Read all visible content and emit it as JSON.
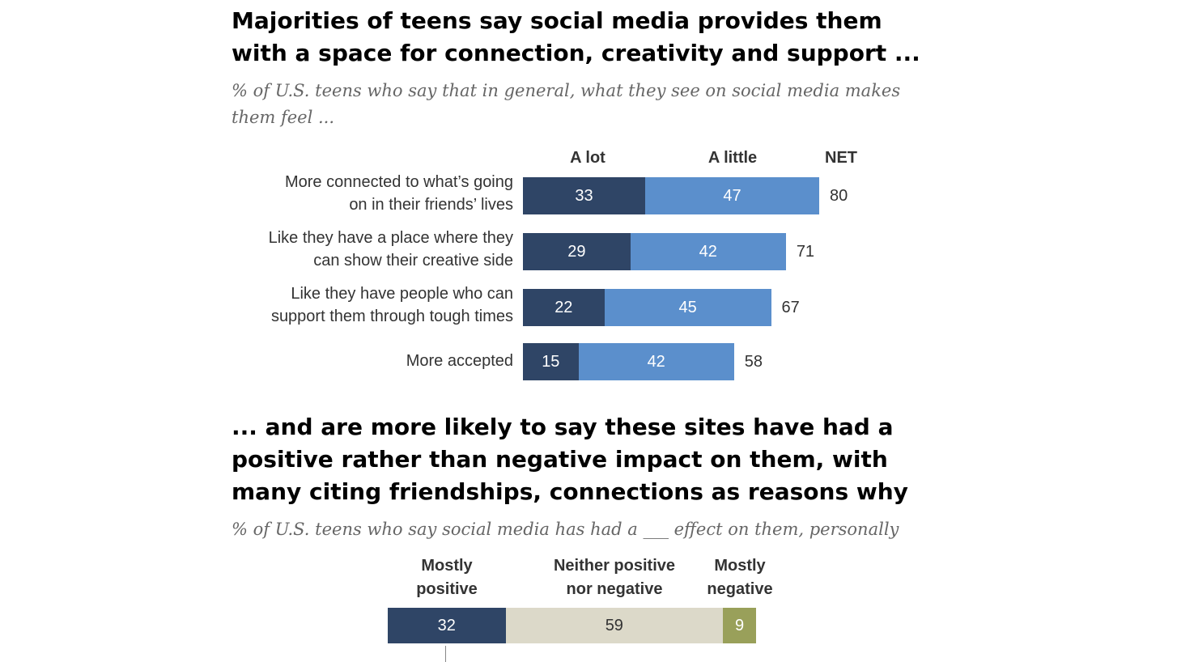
{
  "titles": {
    "t1_line1": "Majorities of teens say social media provides them",
    "t1_line2": "with a space for connection, creativity and support ...",
    "s1": "% of U.S. teens who say that in general, what they see on social media makes them feel ...",
    "t2_line1": "... and are more likely to say these sites have had a",
    "t2_line2": "positive rather than negative impact on them, with",
    "t2_line3": "many citing friendships, connections as reasons why",
    "s2": "% of U.S. teens who say social media has had a ___ effect on them, personally"
  },
  "chart_data": [
    {
      "type": "bar",
      "stacked": true,
      "orientation": "horizontal",
      "categories": [
        [
          "More connected to what’s going",
          "on in their friends’ lives"
        ],
        [
          "Like they have a place where they",
          "can show their creative side"
        ],
        [
          "Like they have people who can",
          "support them through tough times"
        ],
        [
          "More accepted"
        ]
      ],
      "series": [
        {
          "name": "A lot",
          "values": [
            33,
            29,
            22,
            15
          ],
          "color": "#2f4566"
        },
        {
          "name": "A little",
          "values": [
            47,
            42,
            45,
            42
          ],
          "color": "#5b8fcc"
        }
      ],
      "net_label": "NET",
      "net": [
        80,
        71,
        67,
        58
      ]
    },
    {
      "type": "bar",
      "stacked": true,
      "orientation": "horizontal",
      "series": [
        {
          "name": [
            "Mostly",
            "positive"
          ],
          "values": [
            32
          ],
          "color": "#2f4566"
        },
        {
          "name": [
            "Neither positive",
            "nor negative"
          ],
          "values": [
            59
          ],
          "color": "#dcd9c9"
        },
        {
          "name": [
            "Mostly",
            "negative"
          ],
          "values": [
            9
          ],
          "color": "#99a05a"
        }
      ]
    }
  ]
}
